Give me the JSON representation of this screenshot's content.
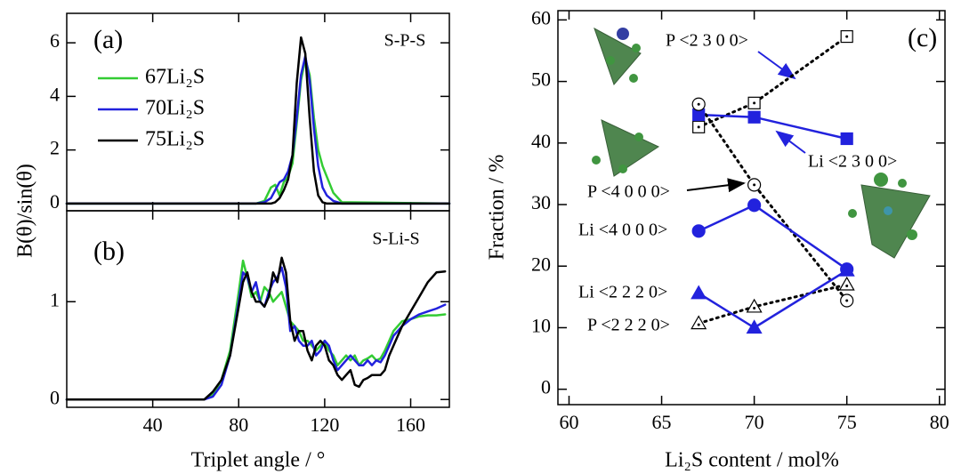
{
  "chart_data": [
    {
      "type": "line",
      "panel_label": "(a)",
      "annotation": "S-P-S",
      "ylabel": "B(θ)/sin(θ)",
      "x": [
        0,
        80,
        88,
        92,
        95,
        97,
        99,
        101,
        103,
        105,
        107,
        109,
        111,
        113,
        115,
        117,
        119,
        121,
        124,
        128,
        178
      ],
      "xlim": [
        0,
        178
      ],
      "ylim": [
        -0.27,
        7.1
      ],
      "yticks": [
        0,
        2,
        4,
        6
      ],
      "legend": "upper left",
      "series": [
        {
          "name": "67Li₂S",
          "color": "#33cc33",
          "values": [
            0,
            0,
            0,
            0.1,
            0.6,
            0.7,
            0.3,
            0.8,
            1.0,
            1.5,
            3.0,
            4.6,
            5.4,
            4.8,
            3.2,
            2.0,
            1.4,
            1.0,
            0.4,
            0.05,
            0
          ]
        },
        {
          "name": "70Li₂S",
          "color": "#2222dd",
          "values": [
            0,
            0,
            0,
            0.05,
            0.2,
            0.5,
            0.8,
            0.9,
            1.2,
            1.8,
            3.2,
            4.8,
            5.5,
            4.6,
            2.8,
            1.4,
            0.6,
            0.3,
            0.1,
            0,
            0
          ]
        },
        {
          "name": "75Li₂S",
          "color": "#000000",
          "values": [
            0,
            0,
            0,
            0,
            0,
            0.05,
            0.2,
            0.5,
            0.9,
            1.8,
            4.5,
            6.2,
            5.6,
            3.2,
            1.2,
            0.3,
            0.05,
            0,
            0,
            0,
            0
          ]
        }
      ]
    },
    {
      "type": "line",
      "panel_label": "(b)",
      "annotation": "S-Li-S",
      "xlabel": "Triplet angle / °",
      "x": [
        0,
        60,
        64,
        68,
        72,
        76,
        80,
        82,
        84,
        86,
        88,
        90,
        92,
        94,
        96,
        98,
        100,
        102,
        104,
        106,
        108,
        110,
        112,
        114,
        116,
        118,
        120,
        122,
        124,
        126,
        128,
        130,
        132,
        134,
        136,
        138,
        140,
        142,
        144,
        146,
        148,
        150,
        152,
        156,
        160,
        164,
        168,
        172,
        176
      ],
      "xlim": [
        0,
        178
      ],
      "xticks": [
        40,
        80,
        120,
        160
      ],
      "ylim": [
        -0.08,
        1.93
      ],
      "yticks": [
        0,
        1
      ],
      "series": [
        {
          "color": "#33cc33",
          "values": [
            0,
            0,
            0,
            0.05,
            0.2,
            0.5,
            1.1,
            1.42,
            1.25,
            1.05,
            1.1,
            1.0,
            1.15,
            1.1,
            1.0,
            1.05,
            1.1,
            0.95,
            0.8,
            0.75,
            0.7,
            0.6,
            0.6,
            0.55,
            0.5,
            0.55,
            0.6,
            0.5,
            0.45,
            0.35,
            0.4,
            0.45,
            0.4,
            0.45,
            0.35,
            0.4,
            0.42,
            0.45,
            0.4,
            0.42,
            0.5,
            0.6,
            0.7,
            0.8,
            0.82,
            0.85,
            0.86,
            0.86,
            0.87
          ]
        },
        {
          "color": "#2222dd",
          "values": [
            0,
            0,
            0,
            0.03,
            0.15,
            0.45,
            1.0,
            1.3,
            1.25,
            1.1,
            1.2,
            1.0,
            0.95,
            1.1,
            1.2,
            1.25,
            1.35,
            1.15,
            0.7,
            0.75,
            0.6,
            0.55,
            0.55,
            0.6,
            0.45,
            0.5,
            0.6,
            0.55,
            0.4,
            0.3,
            0.35,
            0.4,
            0.45,
            0.4,
            0.35,
            0.35,
            0.4,
            0.35,
            0.4,
            0.38,
            0.45,
            0.55,
            0.65,
            0.75,
            0.82,
            0.87,
            0.9,
            0.93,
            0.97
          ]
        },
        {
          "color": "#000000",
          "values": [
            0,
            0,
            0,
            0.08,
            0.2,
            0.45,
            0.95,
            1.2,
            1.3,
            1.1,
            1.0,
            1.0,
            0.95,
            1.05,
            1.3,
            1.2,
            1.45,
            1.3,
            0.8,
            0.6,
            0.7,
            0.7,
            0.5,
            0.4,
            0.55,
            0.6,
            0.55,
            0.4,
            0.35,
            0.25,
            0.2,
            0.25,
            0.3,
            0.15,
            0.13,
            0.2,
            0.22,
            0.25,
            0.25,
            0.25,
            0.3,
            0.45,
            0.55,
            0.75,
            0.9,
            1.05,
            1.2,
            1.3,
            1.31
          ]
        }
      ]
    },
    {
      "type": "line",
      "panel_label": "(c)",
      "xlabel": "Li₂S content / mol%",
      "ylabel": "Fraction / %",
      "x": [
        67,
        70,
        75
      ],
      "xlim": [
        59.4,
        80.3
      ],
      "xticks": [
        60,
        65,
        70,
        75,
        80
      ],
      "ylim": [
        -2.5,
        61.5
      ],
      "yticks": [
        0,
        10,
        20,
        30,
        40,
        50,
        60
      ],
      "series": [
        {
          "name": "P <2 3 0 0>",
          "color": "#000000",
          "marker": "square",
          "filled": false,
          "dashed": true,
          "values": [
            42.6,
            46.5,
            57.3
          ]
        },
        {
          "name": "Li <2 3 0 0>",
          "color": "#2222dd",
          "marker": "square",
          "filled": true,
          "dashed": false,
          "values": [
            44.6,
            44.2,
            40.7
          ]
        },
        {
          "name": "P <4 0 0 0>",
          "color": "#000000",
          "marker": "circle",
          "filled": false,
          "dashed": true,
          "values": [
            46.3,
            33.2,
            14.4
          ]
        },
        {
          "name": "Li <4 0 0 0>",
          "color": "#2222dd",
          "marker": "circle",
          "filled": true,
          "dashed": false,
          "values": [
            25.7,
            29.9,
            19.5
          ]
        },
        {
          "name": "P <2 2 2 0>",
          "color": "#000000",
          "marker": "triangle",
          "filled": false,
          "dashed": true,
          "values": [
            10.7,
            13.4,
            17.0
          ]
        },
        {
          "name": "Li <2 2 2 0>",
          "color": "#2222dd",
          "marker": "triangle",
          "filled": true,
          "dashed": false,
          "values": [
            15.6,
            10.0,
            19.3
          ]
        }
      ]
    }
  ]
}
